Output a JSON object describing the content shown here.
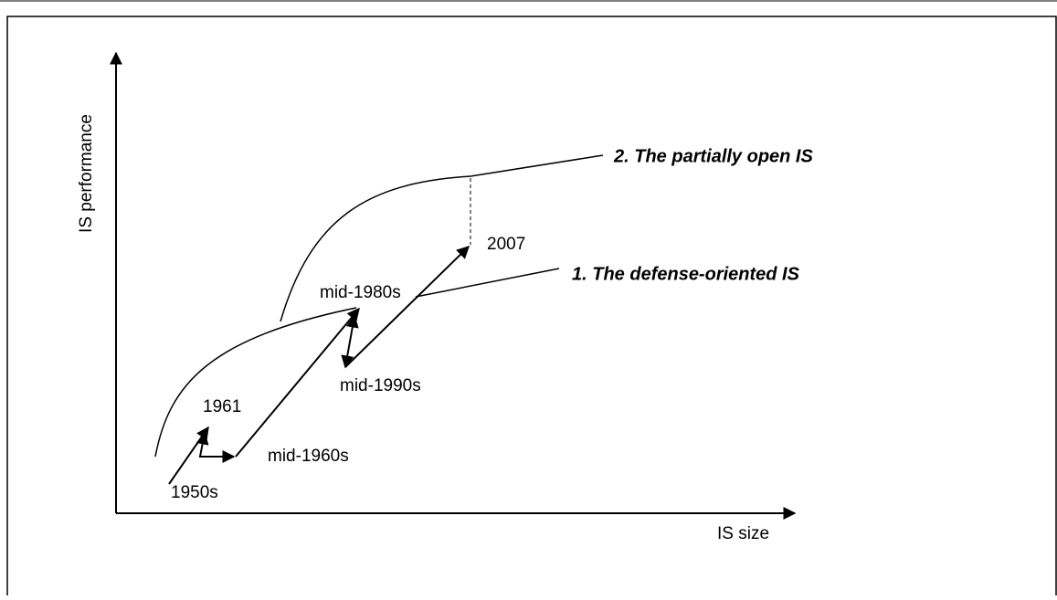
{
  "y_axis_label": "IS performance",
  "x_axis_label": "IS size",
  "curves": [
    {
      "label": "1. The defense-oriented IS"
    },
    {
      "label": "2. The partially open IS"
    }
  ],
  "points": [
    {
      "label": "1950s"
    },
    {
      "label": "1961"
    },
    {
      "label": "mid-1960s"
    },
    {
      "label": "mid-1980s"
    },
    {
      "label": "mid-1990s"
    },
    {
      "label": "2007"
    }
  ]
}
